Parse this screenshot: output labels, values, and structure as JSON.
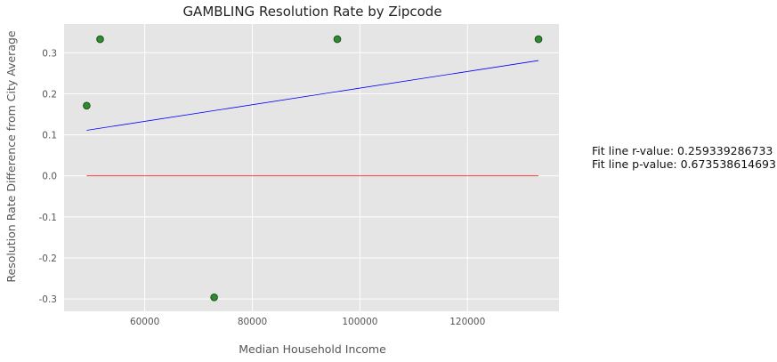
{
  "chart_data": {
    "type": "scatter",
    "title": "GAMBLING Resolution Rate by Zipcode",
    "xlabel": "Median Household Income",
    "ylabel": "Resolution Rate Difference from City Average",
    "xlim": [
      45000,
      137000
    ],
    "ylim": [
      -0.33,
      0.37
    ],
    "xticks": [
      60000,
      80000,
      100000,
      120000
    ],
    "yticks": [
      -0.3,
      -0.2,
      -0.1,
      0.0,
      0.1,
      0.2,
      0.3
    ],
    "grid": true,
    "points": [
      {
        "x": 49200,
        "y": 0.171
      },
      {
        "x": 51700,
        "y": 0.333
      },
      {
        "x": 72900,
        "y": -0.296
      },
      {
        "x": 95800,
        "y": 0.333
      },
      {
        "x": 133200,
        "y": 0.333
      }
    ],
    "fit_line": {
      "x": [
        49200,
        133200
      ],
      "y": [
        0.111,
        0.281
      ]
    },
    "zero_line": {
      "x": [
        49200,
        133200
      ],
      "y": [
        0.0,
        0.0
      ]
    },
    "colors": {
      "background": "#e5e5e5",
      "grid": "#ffffff",
      "point_fill": "#2e8b2e",
      "point_edge": "#1f4f1f",
      "fit_line": "#0000ff",
      "zero_line": "#ff0000"
    },
    "annotations": [
      "Fit line r-value: 0.259339286733",
      "Fit line p-value: 0.673538614693"
    ]
  }
}
